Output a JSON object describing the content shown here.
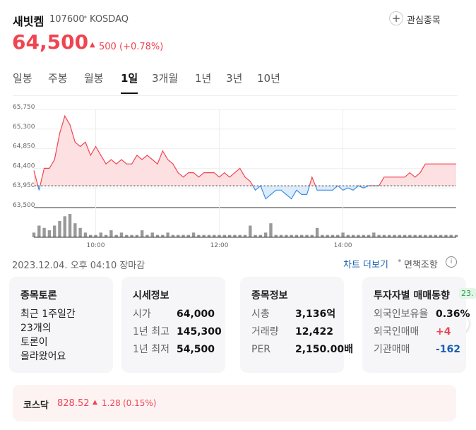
{
  "header": {
    "name": "새빗켐",
    "code": "107600",
    "market": "KOSDAQ",
    "watch": "관심종목"
  },
  "price": {
    "current": "64,500",
    "change": "500",
    "change_pct": "(+0.78%)"
  },
  "tabs": [
    "일봉",
    "주봉",
    "월봉",
    "1일",
    "3개월",
    "1년",
    "3년",
    "10년"
  ],
  "chart_data": {
    "type": "line",
    "values": [
      64350,
      63900,
      64400,
      64400,
      64600,
      65200,
      65600,
      65400,
      65000,
      64900,
      65000,
      64700,
      64900,
      64700,
      64500,
      64600,
      64500,
      64600,
      64500,
      64500,
      64700,
      64600,
      64700,
      64600,
      64500,
      64800,
      64600,
      64500,
      64300,
      64200,
      64300,
      64300,
      64200,
      64300,
      64300,
      64300,
      64200,
      64300,
      64200,
      64300,
      64400,
      64200,
      64100,
      63900,
      64000,
      63700,
      63800,
      63900,
      63900,
      63800,
      63700,
      63900,
      63800,
      63800,
      64200,
      63900,
      63900,
      63900,
      63900,
      64000,
      63900,
      63950,
      63900,
      64000,
      63950,
      64000,
      64000,
      64000,
      64200,
      64200,
      64200,
      64200,
      64200,
      64300,
      64200,
      64300,
      64500,
      64500,
      64500,
      64500,
      64500,
      64500,
      64500
    ],
    "volume": [
      2,
      5,
      4,
      3,
      5,
      7,
      9,
      10,
      6,
      4,
      2,
      1,
      1,
      2,
      1,
      3,
      1,
      2,
      1,
      1,
      1,
      3,
      1,
      2,
      1,
      1,
      2,
      1,
      1,
      1,
      1,
      2,
      1,
      1,
      1,
      1,
      1,
      1,
      1,
      1,
      1,
      1,
      5,
      1,
      1,
      2,
      6,
      1,
      1,
      1,
      1,
      1,
      1,
      1,
      1,
      4,
      1,
      1,
      1,
      1,
      2,
      1,
      1,
      1,
      1,
      1,
      2,
      1,
      1,
      1,
      1,
      1,
      1,
      1,
      1,
      1,
      1,
      1,
      1,
      1,
      1,
      1,
      1
    ],
    "reference_line": 64000,
    "xlim": [
      0,
      82
    ],
    "xticks": [
      {
        "value": 12,
        "label": "10:00"
      },
      {
        "value": 36,
        "label": "12:00"
      },
      {
        "value": 60,
        "label": "14:00"
      }
    ],
    "ylim": [
      63500,
      65750
    ],
    "yticks": [
      {
        "value": 65750,
        "label": "65,750"
      },
      {
        "value": 65300,
        "label": "65,300"
      },
      {
        "value": 64850,
        "label": "64,850"
      },
      {
        "value": 64400,
        "label": "64,400"
      },
      {
        "value": 63950,
        "label": "63,950"
      },
      {
        "value": 63500,
        "label": "63,500"
      }
    ],
    "grid": true,
    "up_color": "#f04451",
    "down_color": "#3d8ee8"
  },
  "status": {
    "time": "2023.12.04. 오후 04:10 장마감",
    "more": "차트 더보기",
    "disclaimer": "면책조항"
  },
  "cards": [
    {
      "title": "종목토론",
      "lines": [
        "최근 1주일간",
        "23개의",
        "토론이",
        "올라왔어요"
      ]
    },
    {
      "title": "시세정보",
      "rows": [
        [
          "시가",
          "64,000"
        ],
        [
          "1년 최고",
          "145,300"
        ],
        [
          "1년 최저",
          "54,500"
        ]
      ]
    },
    {
      "title": "종목정보",
      "rows": [
        [
          "시총",
          "3,136억"
        ],
        [
          "거래량",
          "12,422"
        ],
        [
          "PER",
          "2,150.00배"
        ]
      ]
    },
    {
      "title": "투자자별 매매동향",
      "badge": "23.",
      "rows": [
        [
          "외국인보유율",
          "0.36%"
        ],
        [
          "외국인매매",
          "+4"
        ],
        [
          "기관매매",
          "-162"
        ]
      ]
    }
  ],
  "index": {
    "name": "코스닥",
    "value": "828.52",
    "change": "1.28",
    "pct": "(0.15%)"
  }
}
